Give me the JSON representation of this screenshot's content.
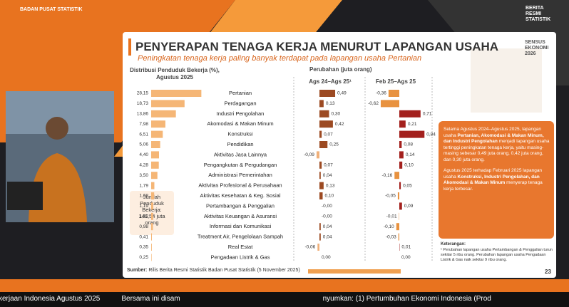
{
  "header": {
    "org": "BADAN PUSAT STATISTIK",
    "brs": [
      "BERITA",
      "RESMI",
      "STATISTIK"
    ]
  },
  "slide": {
    "title": "PENYERAPAN TENAGA KERJA MENURUT LAPANGAN USAHA",
    "subtitle": "Peningkatan tenaga kerja paling banyak terdapat pada lapangan usaha Pertanian",
    "logo": [
      "SENSUS",
      "EKONOMI",
      "2026"
    ],
    "change_header": "Perubahan (juta orang)",
    "total_box": [
      "Jumlah",
      "Penduduk",
      "Bekerja:",
      "146,54 juta",
      "orang"
    ],
    "notes": [
      [
        "Selama Agustus 2024–Agustus 2025, lapangan usaha ",
        "Pertanian, Akomodasi & Makan Minum, dan Industri Pengolahan",
        " menjadi lapangan usaha tertinggi peningkatan tenaga kerja, yaitu masing-masing sebesar 0,49 juta orang, 0,42 juta orang, dan 0,30 juta orang."
      ],
      [
        "Agustus 2025 terhadap Februari 2025 lapangan usaha ",
        "Konstruksi, Industri Pengolahan, dan Akomodasi & Makan Minum",
        " menyerap tenaga kerja terbesar."
      ]
    ],
    "footnote_title": "Keterangan:",
    "footnote": "¹ Perubahan lapangan usaha Pertambangan & Penggalian turun sekitar 5 ribu orang. Perubahan lapangan usaha Pengadaan Listrik & Gas naik sekitar 9 ribu orang.",
    "source_label": "Sumber:",
    "source": "Rilis Berita Resmi Statistik Badan Pusat Statistik (5 November 2025)",
    "page": "23"
  },
  "chart_data": [
    {
      "type": "bar",
      "title": [
        "Distribusi Penduduk Bekerja (%),",
        "Agustus 2025"
      ],
      "color": "#f5b676",
      "categories": [
        "Pertanian",
        "Perdagangan",
        "Industri Pengolahan",
        "Akomodasi & Makan Minum",
        "Konstruksi",
        "Pendidikan",
        "Aktivitas Jasa Lainnya",
        "Pengangkutan & Pergudangan",
        "Administrasi Pemerintahan",
        "Aktivitas Profesional & Perusahaan",
        "Aktivitas Kesehatan & Keg. Sosial",
        "Pertambangan & Penggalian",
        "Aktivitas Keuangan & Asuransi",
        "Informasi dan Komunikasi",
        "Treatment Air, Pengelolaan Sampah",
        "Real Estat",
        "Pengadaan Listrik & Gas"
      ],
      "values": [
        28.15,
        18.73,
        13.86,
        7.98,
        6.51,
        5.06,
        4.4,
        4.28,
        3.5,
        1.79,
        1.68,
        1.19,
        1.12,
        0.98,
        0.41,
        0.35,
        0.25
      ],
      "value_labels": [
        "28,15",
        "18,73",
        "13,86",
        "7,98",
        "6,51",
        "5,06",
        "4,40",
        "4,28",
        "3,50",
        "1,79",
        "1,68",
        "1,19",
        "1,12",
        "0,98",
        "0,41",
        "0,35",
        "0,25"
      ]
    },
    {
      "type": "bar",
      "title": "Ags 24–Ags 25¹",
      "color": "#9c4a22",
      "negative_color": "#f0b07a",
      "values": [
        0.49,
        0.13,
        0.3,
        0.42,
        0.07,
        0.25,
        -0.09,
        0.07,
        0.04,
        0.13,
        0.1,
        0,
        0,
        0.04,
        0.04,
        -0.06,
        0.0
      ],
      "value_labels": [
        "0,49",
        "0,13",
        "0,30",
        "0,42",
        "0,07",
        "0,25",
        "-0,09",
        "0,07",
        "0,04",
        "0,13",
        "0,10",
        "-0,00",
        "-0,00",
        "0,04",
        "0,04",
        "-0,06",
        "0,00"
      ]
    },
    {
      "type": "bar",
      "title": "Feb 25–Ags 25",
      "color": "#a3201d",
      "negative_color": "#e8923f",
      "values": [
        -0.36,
        -0.62,
        0.71,
        0.21,
        0.84,
        0.08,
        0.14,
        0.1,
        -0.16,
        0.05,
        -0.05,
        0.09,
        -0.01,
        -0.1,
        -0.03,
        0.01,
        0.0
      ],
      "value_labels": [
        "-0,36",
        "-0,62",
        "0,71",
        "0,21",
        "0,84",
        "0,08",
        "0,14",
        "0,10",
        "-0,16",
        "0,05",
        "-0,05",
        "0,09",
        "-0,01",
        "-0,10",
        "-0,03",
        "0,01",
        "0,00"
      ]
    }
  ],
  "ticker": [
    "kerjaan Indonesia Agustus 2025",
    "Bersama ini disam",
    "nyumkan: (1) Pertumbuhan Ekonomi Indonesia (Prod"
  ]
}
